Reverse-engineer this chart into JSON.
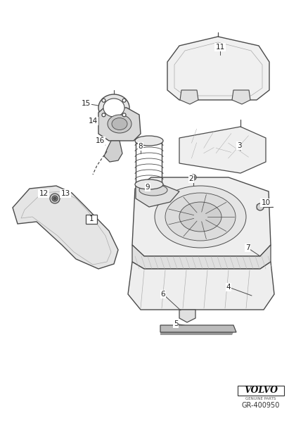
{
  "bg_color": "#ffffff",
  "line_color": "#4a4a4a",
  "label_color": "#222222",
  "volvo_text": "VOLVO",
  "genuine_text": "GENUINE PARTS",
  "part_number": "GR-400950",
  "fig_width": 4.11,
  "fig_height": 6.01,
  "dpi": 100
}
